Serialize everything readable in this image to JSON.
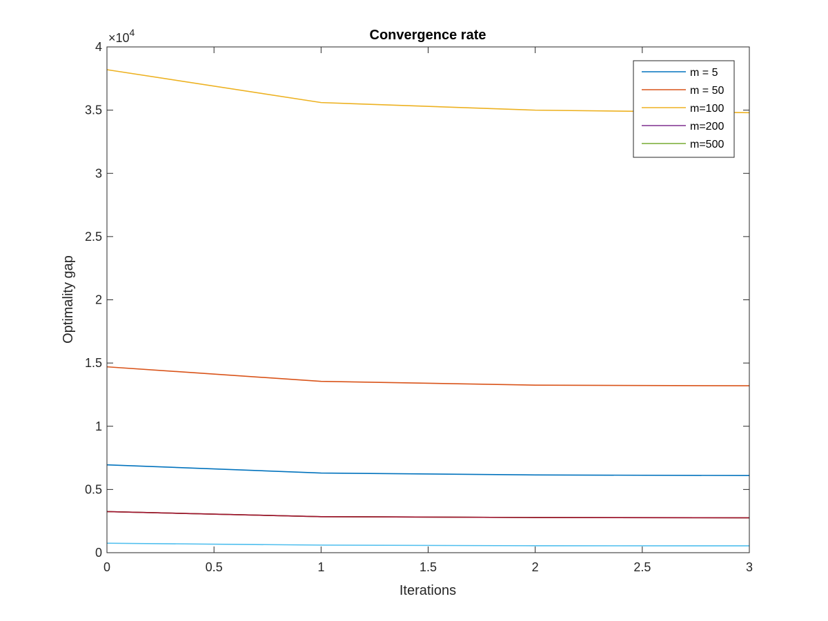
{
  "chart_data": {
    "type": "line",
    "title": "Convergence rate",
    "xlabel": "Iterations",
    "ylabel": "Optimality gap",
    "xlim": [
      0,
      3
    ],
    "ylim": [
      0,
      40000
    ],
    "y_exponent_label": "×10",
    "y_exponent_power": "4",
    "xticks": [
      0,
      0.5,
      1,
      1.5,
      2,
      2.5,
      3
    ],
    "xtick_labels": [
      "0",
      "0.5",
      "1",
      "1.5",
      "2",
      "2.5",
      "3"
    ],
    "yticks": [
      0,
      5000,
      10000,
      15000,
      20000,
      25000,
      30000,
      35000,
      40000
    ],
    "ytick_labels": [
      "0",
      "0.5",
      "1",
      "1.5",
      "2",
      "2.5",
      "3",
      "3.5",
      "4"
    ],
    "grid": false,
    "legend_position": "top-right",
    "x": [
      0,
      1,
      2,
      3
    ],
    "series": [
      {
        "name": "m = 5",
        "color": "#0072BD",
        "values": [
          6950,
          6300,
          6150,
          6100
        ]
      },
      {
        "name": "m = 50",
        "color": "#D95319",
        "values": [
          14700,
          13550,
          13250,
          13200
        ]
      },
      {
        "name": "m=100",
        "color": "#EDB120",
        "values": [
          38200,
          35600,
          35000,
          34800
        ]
      },
      {
        "name": "m=200",
        "color": "#7E2F8E",
        "values": [
          3250,
          2850,
          2780,
          2760
        ]
      },
      {
        "name": "m=500",
        "color": "#77AC30",
        "values": [
          3250,
          2850,
          2780,
          2760
        ]
      },
      {
        "color": "#4DBEEE",
        "values": [
          750,
          600,
          550,
          540
        ]
      },
      {
        "color": "#A2142F",
        "values": [
          3250,
          2850,
          2780,
          2760
        ]
      }
    ]
  }
}
